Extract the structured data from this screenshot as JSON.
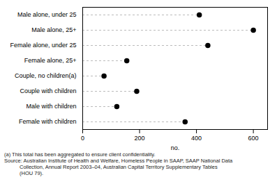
{
  "chart_data": {
    "type": "dot",
    "orientation": "horizontal",
    "categories": [
      "Male alone, under 25",
      "Male alone, 25+",
      "Female alone, under 25",
      "Female alone, 25+",
      "Couple, no children(a)",
      "Couple with children",
      "Male with children",
      "Female with children"
    ],
    "values": [
      410,
      600,
      440,
      155,
      75,
      190,
      120,
      360
    ],
    "xlabel": "no.",
    "xlim": [
      0,
      650
    ],
    "xticks": [
      0,
      200,
      400,
      600
    ],
    "color": "#000000",
    "marker": "circle",
    "line_style": "dashed",
    "grid": false,
    "annotations": [
      "(a) This total has been aggregated to ensure client confidentiality.",
      "Source: Australian Institute of Health and Welfare, Homeless People in SAAP, SAAP National Data\nCollection, Annual Report 2003–04, Australian Capital Territory Supplementary Tables\n(HOU 79)."
    ]
  }
}
